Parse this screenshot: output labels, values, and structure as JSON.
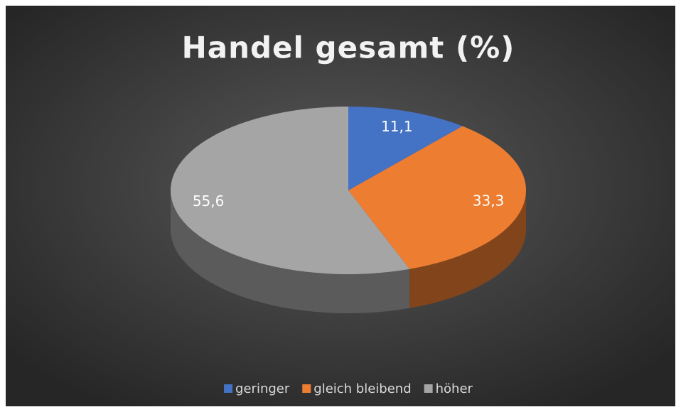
{
  "chart_data": {
    "type": "pie",
    "title": "Handel gesamt (%)",
    "categories": [
      "geringer",
      "gleich bleibend",
      "höher"
    ],
    "values": [
      11.1,
      33.3,
      55.6
    ],
    "value_labels": [
      "11,1",
      "33,3",
      "55,6"
    ],
    "colors": [
      "#4472c4",
      "#ed7d31",
      "#a5a5a5"
    ],
    "legend": "bottom"
  }
}
